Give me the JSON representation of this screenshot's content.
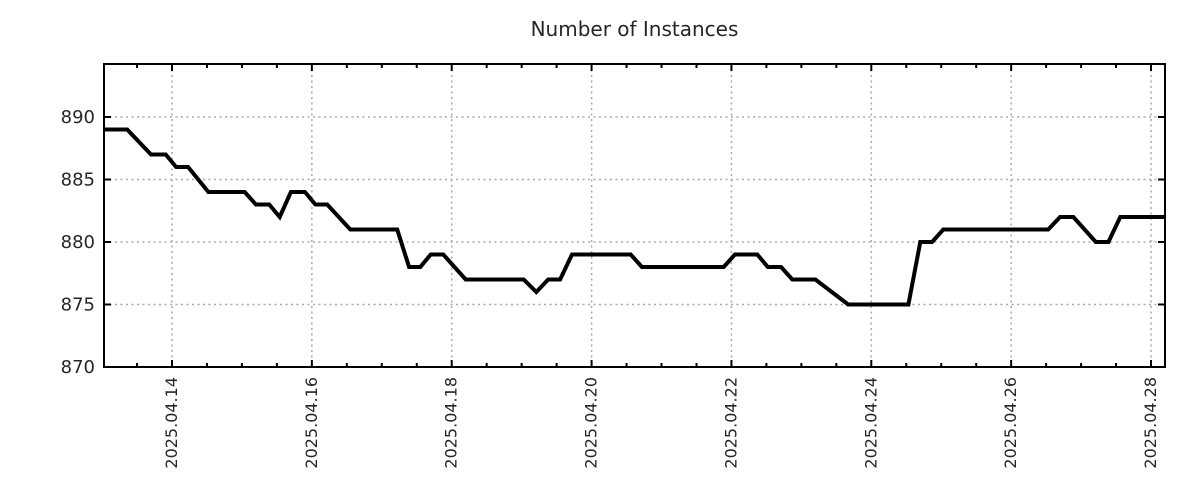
{
  "title": "Number of Instances",
  "colors": {
    "line": "#000000",
    "axis": "#000000",
    "grid": "#a8a8a8",
    "text": "#262626",
    "background": "#ffffff"
  },
  "chart_data": {
    "type": "line",
    "title": "Number of Instances",
    "legend": null,
    "grid": "dotted major gridlines on both axes",
    "x_axis": {
      "unit": "date, fractional day of April 2025",
      "tick_labels": [
        "2025.04.14",
        "2025.04.16",
        "2025.04.18",
        "2025.04.20",
        "2025.04.22",
        "2025.04.24",
        "2025.04.26",
        "2025.04.28"
      ],
      "major_tick_days": [
        14,
        16,
        18,
        20,
        22,
        24,
        26,
        28
      ],
      "minor_tick_step_days": 0.5,
      "range_days": [
        13.03,
        28.2
      ],
      "label_rotation_deg": -90
    },
    "y_axis": {
      "tick_labels": [
        "890",
        "885",
        "880",
        "875",
        "870"
      ],
      "ticks": [
        890,
        885,
        880,
        875,
        870
      ],
      "range": [
        870,
        894.2
      ]
    },
    "series": [
      {
        "name": "Number of Instances",
        "color": "#000000",
        "points": [
          [
            13.03,
            889
          ],
          [
            13.36,
            889
          ],
          [
            13.7,
            887
          ],
          [
            13.91,
            887
          ],
          [
            14.06,
            886
          ],
          [
            14.23,
            886
          ],
          [
            14.52,
            884
          ],
          [
            15.04,
            884
          ],
          [
            15.2,
            883
          ],
          [
            15.39,
            883
          ],
          [
            15.54,
            882
          ],
          [
            15.7,
            884
          ],
          [
            15.9,
            884
          ],
          [
            16.05,
            883
          ],
          [
            16.22,
            883
          ],
          [
            16.55,
            881
          ],
          [
            17.22,
            881
          ],
          [
            17.39,
            878
          ],
          [
            17.55,
            878
          ],
          [
            17.7,
            879
          ],
          [
            17.88,
            879
          ],
          [
            18.2,
            877
          ],
          [
            19.03,
            877
          ],
          [
            19.21,
            876
          ],
          [
            19.38,
            877
          ],
          [
            19.55,
            877
          ],
          [
            19.72,
            879
          ],
          [
            20.56,
            879
          ],
          [
            20.72,
            878
          ],
          [
            21.89,
            878
          ],
          [
            22.05,
            879
          ],
          [
            22.37,
            879
          ],
          [
            22.52,
            878
          ],
          [
            22.71,
            878
          ],
          [
            22.87,
            877
          ],
          [
            23.2,
            877
          ],
          [
            23.67,
            875
          ],
          [
            24.53,
            875
          ],
          [
            24.7,
            880
          ],
          [
            24.87,
            880
          ],
          [
            25.03,
            881
          ],
          [
            26.53,
            881
          ],
          [
            26.7,
            882
          ],
          [
            26.89,
            882
          ],
          [
            27.21,
            880
          ],
          [
            27.39,
            880
          ],
          [
            27.56,
            882
          ],
          [
            28.2,
            882
          ]
        ]
      }
    ]
  }
}
